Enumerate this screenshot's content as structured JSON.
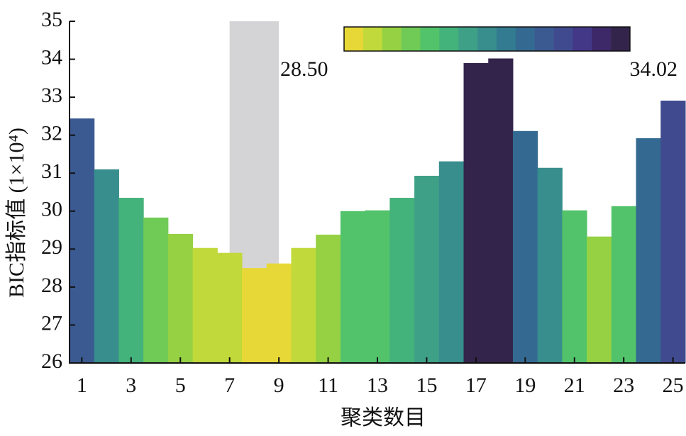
{
  "chart_data": {
    "type": "bar",
    "x_label": "聚类数目",
    "y_label": "BIC指标值 (1×10⁴)",
    "categories": [
      1,
      null,
      3,
      null,
      5,
      null,
      7,
      null,
      9,
      null,
      11,
      null,
      13,
      null,
      15,
      null,
      17,
      null,
      19,
      null,
      21,
      null,
      23,
      null,
      25
    ],
    "values": [
      32.44,
      31.1,
      30.35,
      29.83,
      29.4,
      29.03,
      28.9,
      28.5,
      28.62,
      29.03,
      29.38,
      30.0,
      30.02,
      30.35,
      30.93,
      31.31,
      33.9,
      34.02,
      32.11,
      31.14,
      30.02,
      29.33,
      30.13,
      31.92,
      32.91
    ],
    "ylim": [
      26,
      35
    ],
    "yticks": [
      26,
      27,
      28,
      29,
      30,
      31,
      32,
      33,
      34,
      35
    ],
    "colorbar": {
      "min": {
        "value": 28.5,
        "label": "28.50"
      },
      "max": 34.02,
      "colors": [
        "#e8d837",
        "#c1d93a",
        "#95d143",
        "#6fcb56",
        "#52c36a",
        "#44b27b",
        "#3ea187",
        "#378e8d",
        "#337b90",
        "#346a91",
        "#3a5a91",
        "#3f4b8e",
        "#433888",
        "#3d2868",
        "#33244b"
      ]
    }
  }
}
